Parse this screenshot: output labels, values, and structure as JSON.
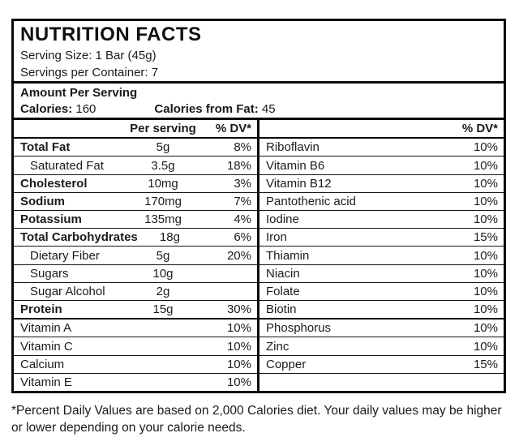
{
  "header": {
    "title": "NUTRITION FACTS",
    "serving_size": "Serving Size: 1 Bar (45g)",
    "servings_per_container": "Servings per Container: 7"
  },
  "amount_section": {
    "heading": "Amount Per Serving",
    "calories_label": "Calories: ",
    "calories_value": "160",
    "calories_from_fat_label": "Calories from Fat: ",
    "calories_from_fat_value": "45"
  },
  "left_table": {
    "columns": {
      "amount": "Per serving",
      "dv": "% DV*"
    },
    "rows": [
      {
        "label": "Total Fat",
        "amount": "5g",
        "dv": "8%"
      },
      {
        "label": "Saturated Fat",
        "amount": "3.5g",
        "dv": "18%"
      },
      {
        "label": "Cholesterol",
        "amount": "10mg",
        "dv": "3%"
      },
      {
        "label": "Sodium",
        "amount": "170mg",
        "dv": "7%"
      },
      {
        "label": "Potassium",
        "amount": "135mg",
        "dv": "4%"
      },
      {
        "label": "Total Carbohydrates",
        "amount": "18g",
        "dv": "6%"
      },
      {
        "label": "Dietary Fiber",
        "amount": "5g",
        "dv": "20%"
      },
      {
        "label": "Sugars",
        "amount": "10g",
        "dv": ""
      },
      {
        "label": "Sugar Alcohol",
        "amount": "2g",
        "dv": ""
      },
      {
        "label": "Protein",
        "amount": "15g",
        "dv": "30%"
      },
      {
        "label": "Vitamin A",
        "amount": "",
        "dv": "10%"
      },
      {
        "label": "Vitamin C",
        "amount": "",
        "dv": "10%"
      },
      {
        "label": "Calcium",
        "amount": "",
        "dv": "10%"
      },
      {
        "label": "Vitamin E",
        "amount": "",
        "dv": "10%"
      }
    ]
  },
  "right_table": {
    "columns": {
      "dv": "% DV*"
    },
    "rows": [
      {
        "label": "Riboflavin",
        "dv": "10%"
      },
      {
        "label": "Vitamin B6",
        "dv": "10%"
      },
      {
        "label": "Vitamin B12",
        "dv": "10%"
      },
      {
        "label": "Pantothenic acid",
        "dv": "10%"
      },
      {
        "label": "Iodine",
        "dv": "10%"
      },
      {
        "label": "Iron",
        "dv": "15%"
      },
      {
        "label": "Thiamin",
        "dv": "10%"
      },
      {
        "label": "Niacin",
        "dv": "10%"
      },
      {
        "label": "Folate",
        "dv": "10%"
      },
      {
        "label": "Biotin",
        "dv": "10%"
      },
      {
        "label": "Phosphorus",
        "dv": "10%"
      },
      {
        "label": "Zinc",
        "dv": "10%"
      },
      {
        "label": "Copper",
        "dv": "15%"
      },
      {
        "label": "",
        "dv": ""
      }
    ]
  },
  "footnote": "*Percent Daily Values are based on 2,000 Calories diet. Your daily values may be higher or lower depending on your calorie needs.",
  "colors": {
    "text": "#1b1b1b",
    "border": "#0a0a0a",
    "background": "#ffffff"
  }
}
